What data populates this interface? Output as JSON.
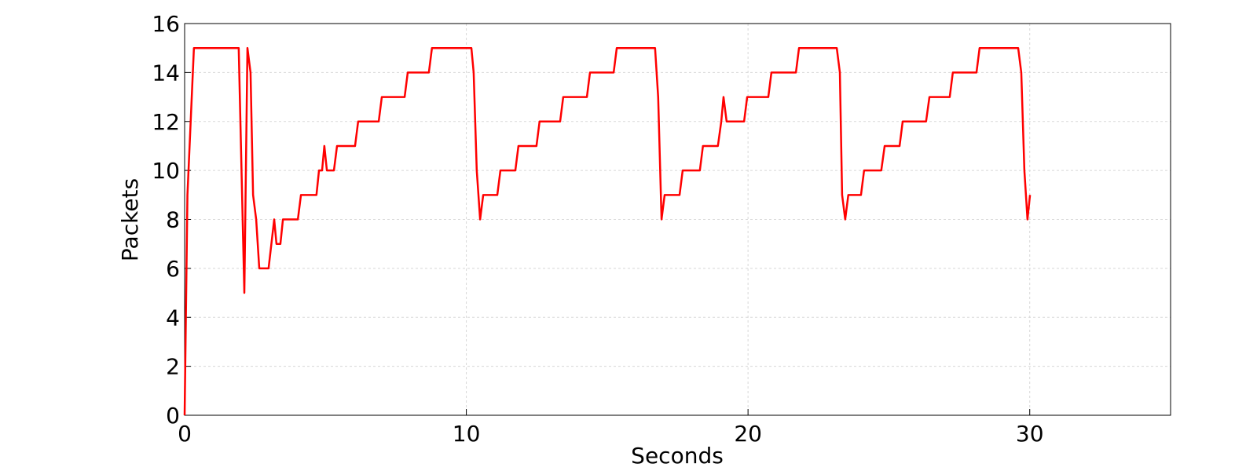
{
  "chart_data": {
    "type": "line",
    "xlabel": "Seconds",
    "ylabel": "Packets",
    "xlim": [
      0,
      35
    ],
    "ylim": [
      0,
      16
    ],
    "xticks": [
      0,
      10,
      20,
      30
    ],
    "yticks": [
      0,
      2,
      4,
      6,
      8,
      10,
      12,
      14,
      16
    ],
    "grid": true,
    "series": [
      {
        "color": "#ff0000",
        "x": [
          0,
          0.1,
          0.33,
          1.92,
          2.12,
          2.23,
          2.34,
          2.43,
          2.54,
          2.65,
          2.98,
          3.18,
          3.26,
          3.4,
          3.49,
          4.02,
          4.13,
          4.68,
          4.77,
          4.88,
          4.96,
          5.05,
          5.3,
          5.41,
          6.05,
          6.16,
          6.89,
          7.0,
          7.81,
          7.92,
          8.67,
          8.78,
          10.18,
          10.26,
          10.37,
          10.49,
          10.6,
          11.1,
          11.21,
          11.74,
          11.85,
          12.49,
          12.6,
          13.33,
          13.44,
          14.28,
          14.39,
          15.23,
          15.34,
          16.7,
          16.81,
          16.93,
          17.04,
          17.57,
          17.68,
          18.29,
          18.4,
          18.93,
          19.05,
          19.13,
          19.24,
          19.86,
          19.97,
          20.72,
          20.83,
          21.7,
          21.81,
          23.15,
          23.26,
          23.34,
          23.45,
          23.56,
          24.01,
          24.12,
          24.73,
          24.85,
          25.38,
          25.49,
          26.32,
          26.44,
          27.16,
          27.27,
          28.11,
          28.22,
          29.59,
          29.7,
          29.81,
          29.92,
          30.01
        ],
        "values": [
          0,
          9,
          15,
          15,
          5,
          15,
          14,
          9,
          8,
          6,
          6,
          8,
          7,
          7,
          8,
          8,
          9,
          9,
          10,
          10,
          11,
          10,
          10,
          11,
          11,
          12,
          12,
          13,
          13,
          14,
          14,
          15,
          15,
          14,
          10,
          8,
          9,
          9,
          10,
          10,
          11,
          11,
          12,
          12,
          13,
          13,
          14,
          14,
          15,
          15,
          13,
          8,
          9,
          9,
          10,
          10,
          11,
          11,
          12,
          13,
          12,
          12,
          13,
          13,
          14,
          14,
          15,
          15,
          14,
          9,
          8,
          9,
          9,
          10,
          10,
          11,
          11,
          12,
          12,
          13,
          13,
          14,
          14,
          15,
          15,
          14,
          10,
          8,
          9
        ]
      }
    ]
  }
}
